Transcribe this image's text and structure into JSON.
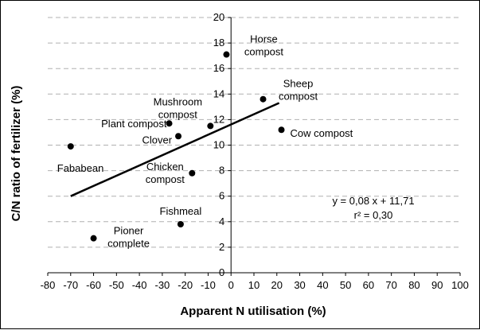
{
  "chart_data": {
    "type": "scatter",
    "xlabel": "Apparent N utilisation (%)",
    "ylabel": "C/N ratio of fertilizer (%)",
    "xlim": [
      -80,
      100
    ],
    "ylim": [
      0,
      20
    ],
    "x_ticks": [
      -80,
      -70,
      -60,
      -50,
      -40,
      -30,
      -20,
      -10,
      0,
      10,
      20,
      30,
      40,
      50,
      60,
      70,
      80,
      90,
      100
    ],
    "y_ticks": [
      0,
      2,
      4,
      6,
      8,
      10,
      12,
      14,
      16,
      18,
      20
    ],
    "grid": "horizontal dashed",
    "points": [
      {
        "label": [
          "Horse",
          "compost"
        ],
        "x": -2,
        "y": 17.1
      },
      {
        "label": [
          "Sheep",
          "compost"
        ],
        "x": 14,
        "y": 13.6
      },
      {
        "label": [
          "Cow compost"
        ],
        "x": 22,
        "y": 11.2
      },
      {
        "label": [
          "Mushroom",
          "compost"
        ],
        "x": -9,
        "y": 11.5
      },
      {
        "label": [
          "Plant compost"
        ],
        "x": -27,
        "y": 11.7
      },
      {
        "label": [
          "Clover"
        ],
        "x": -23,
        "y": 10.7
      },
      {
        "label": [
          "Fababean"
        ],
        "x": -70,
        "y": 9.9
      },
      {
        "label": [
          "Chicken",
          "compost"
        ],
        "x": -17,
        "y": 7.8
      },
      {
        "label": [
          "Fishmeal"
        ],
        "x": -22,
        "y": 3.8
      },
      {
        "label": [
          "Pioner",
          "complete"
        ],
        "x": -60,
        "y": 2.7
      }
    ],
    "trendline": {
      "x_start": -70,
      "y_start": 6.0,
      "x_end": 21,
      "y_end": 13.3
    },
    "equation_lines": [
      "y = 0,08 x + 11,71",
      "r² = 0,30"
    ],
    "colors": {
      "points": "#000000",
      "grid": "#b0b0b0",
      "line": "#000000"
    }
  }
}
